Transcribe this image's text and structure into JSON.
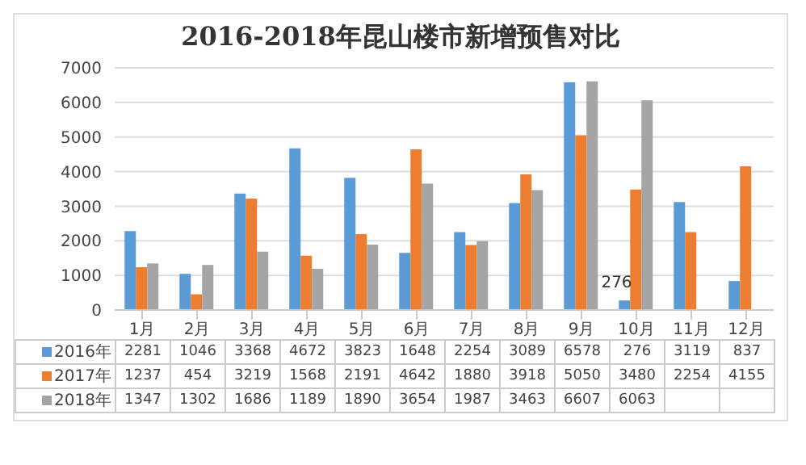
{
  "chart_data": {
    "type": "bar",
    "title": "2016-2018年昆山楼市新增预售对比",
    "categories": [
      "1月",
      "2月",
      "3月",
      "4月",
      "5月",
      "6月",
      "7月",
      "8月",
      "9月",
      "10月",
      "11月",
      "12月"
    ],
    "series": [
      {
        "name": "2016年",
        "color": "#5b9bd5",
        "values": [
          2281,
          1046,
          3368,
          4672,
          3823,
          1648,
          2254,
          3089,
          6578,
          276,
          3119,
          837
        ]
      },
      {
        "name": "2017年",
        "color": "#ed7d31",
        "values": [
          1237,
          454,
          3219,
          1568,
          2191,
          4642,
          1880,
          3918,
          5050,
          3480,
          2254,
          4155
        ]
      },
      {
        "name": "2018年",
        "color": "#a5a5a5",
        "values": [
          1347,
          1302,
          1686,
          1189,
          1890,
          3654,
          1987,
          3463,
          6607,
          6063,
          null,
          null
        ]
      }
    ],
    "ylim": [
      0,
      7000
    ],
    "yticks": [
      0,
      1000,
      2000,
      3000,
      4000,
      5000,
      6000,
      7000
    ],
    "grid": "y",
    "legend": "bottom",
    "data_labels": true,
    "annotations": [
      {
        "text": "276",
        "x": "10月",
        "y": 276
      }
    ]
  }
}
